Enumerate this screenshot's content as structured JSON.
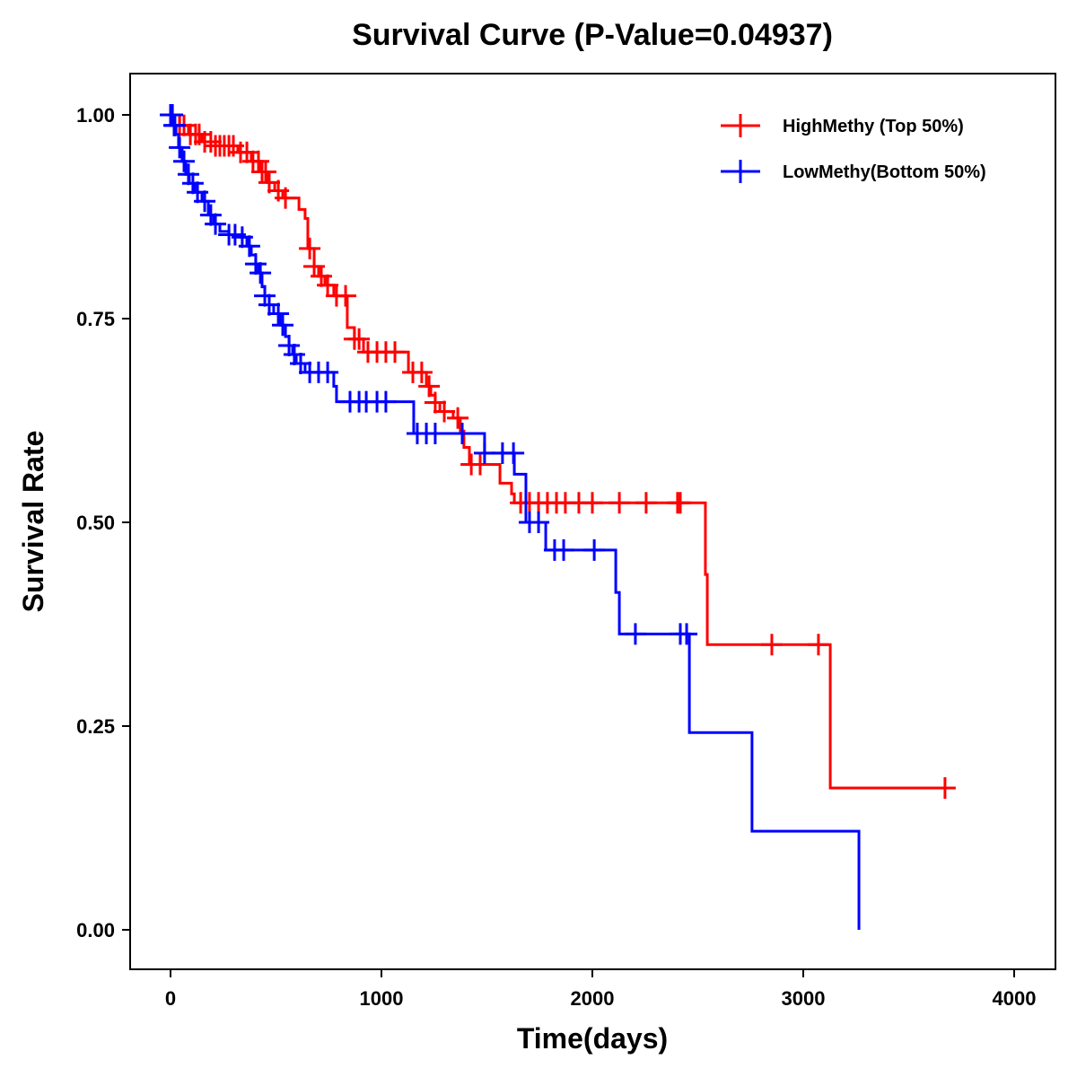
{
  "chart_data": {
    "type": "line",
    "subtype": "kaplan-meier",
    "title": "Survival Curve (P-Value=0.04937)",
    "xlabel": "Time(days)",
    "ylabel": "Survival Rate",
    "xlim": [
      -200,
      4200
    ],
    "ylim": [
      -0.05,
      1.05
    ],
    "xticks": [
      0,
      1000,
      2000,
      3000,
      4000
    ],
    "xtick_labels": [
      "0",
      "1000",
      "2000",
      "3000",
      "4000"
    ],
    "yticks": [
      0,
      0.25,
      0.5,
      0.75,
      1.0
    ],
    "ytick_labels": [
      "0.00",
      "0.25",
      "0.50",
      "0.75",
      "1.00"
    ],
    "grid": false,
    "legend_position": "top-right",
    "series": [
      {
        "name": "HighMethy (Top 50%)",
        "color": "#ff0000",
        "end_time": 3680,
        "steps": [
          [
            0,
            1.0
          ],
          [
            43,
            0.987
          ],
          [
            85,
            0.976
          ],
          [
            149,
            0.967
          ],
          [
            213,
            0.962
          ],
          [
            319,
            0.954
          ],
          [
            383,
            0.943
          ],
          [
            426,
            0.93
          ],
          [
            460,
            0.917
          ],
          [
            494,
            0.907
          ],
          [
            532,
            0.898
          ],
          [
            609,
            0.884
          ],
          [
            638,
            0.873
          ],
          [
            651,
            0.836
          ],
          [
            681,
            0.814
          ],
          [
            702,
            0.802
          ],
          [
            732,
            0.791
          ],
          [
            774,
            0.778
          ],
          [
            838,
            0.739
          ],
          [
            872,
            0.725
          ],
          [
            915,
            0.709
          ],
          [
            1128,
            0.684
          ],
          [
            1213,
            0.667
          ],
          [
            1234,
            0.656
          ],
          [
            1255,
            0.647
          ],
          [
            1277,
            0.636
          ],
          [
            1340,
            0.628
          ],
          [
            1374,
            0.612
          ],
          [
            1391,
            0.592
          ],
          [
            1417,
            0.571
          ],
          [
            1562,
            0.548
          ],
          [
            1617,
            0.535
          ],
          [
            1630,
            0.524
          ],
          [
            2536,
            0.436
          ],
          [
            2545,
            0.35
          ],
          [
            3128,
            0.174
          ]
        ],
        "censored": [
          43,
          64,
          94,
          119,
          136,
          162,
          191,
          213,
          234,
          255,
          277,
          298,
          332,
          362,
          391,
          417,
          434,
          451,
          468,
          511,
          545,
          660,
          681,
          715,
          745,
          787,
          830,
          872,
          894,
          936,
          979,
          1021,
          1064,
          1149,
          1191,
          1226,
          1255,
          1298,
          1362,
          1426,
          1468,
          1660,
          1702,
          1745,
          1787,
          1830,
          1872,
          1936,
          2000,
          2128,
          2255,
          2404,
          2417,
          2851,
          3072,
          3672
        ]
      },
      {
        "name": "LowMethy(Bottom 50%)",
        "color": "#0000ff",
        "end_time": 3264,
        "steps": [
          [
            0,
            1.0
          ],
          [
            13,
            0.987
          ],
          [
            26,
            0.976
          ],
          [
            38,
            0.96
          ],
          [
            55,
            0.943
          ],
          [
            72,
            0.927
          ],
          [
            89,
            0.916
          ],
          [
            115,
            0.905
          ],
          [
            149,
            0.894
          ],
          [
            179,
            0.877
          ],
          [
            204,
            0.866
          ],
          [
            234,
            0.857
          ],
          [
            277,
            0.853
          ],
          [
            332,
            0.85
          ],
          [
            362,
            0.839
          ],
          [
            383,
            0.828
          ],
          [
            404,
            0.817
          ],
          [
            417,
            0.806
          ],
          [
            434,
            0.789
          ],
          [
            447,
            0.778
          ],
          [
            468,
            0.767
          ],
          [
            489,
            0.756
          ],
          [
            519,
            0.742
          ],
          [
            545,
            0.728
          ],
          [
            562,
            0.717
          ],
          [
            579,
            0.706
          ],
          [
            596,
            0.695
          ],
          [
            638,
            0.684
          ],
          [
            774,
            0.667
          ],
          [
            787,
            0.648
          ],
          [
            1153,
            0.609
          ],
          [
            1489,
            0.585
          ],
          [
            1630,
            0.559
          ],
          [
            1685,
            0.5
          ],
          [
            1779,
            0.466
          ],
          [
            2111,
            0.414
          ],
          [
            2128,
            0.363
          ],
          [
            2460,
            0.242
          ],
          [
            2757,
            0.121
          ],
          [
            3264,
            0.0
          ]
        ],
        "censored": [
          0,
          9,
          17,
          21,
          43,
          64,
          85,
          106,
          128,
          162,
          191,
          213,
          277,
          306,
          340,
          374,
          404,
          426,
          447,
          468,
          511,
          532,
          562,
          587,
          617,
          660,
          702,
          745,
          851,
          894,
          928,
          979,
          1021,
          1170,
          1213,
          1255,
          1383,
          1489,
          1574,
          1626,
          1702,
          1745,
          1821,
          1864,
          2009,
          2204,
          2417,
          2447
        ]
      }
    ]
  }
}
